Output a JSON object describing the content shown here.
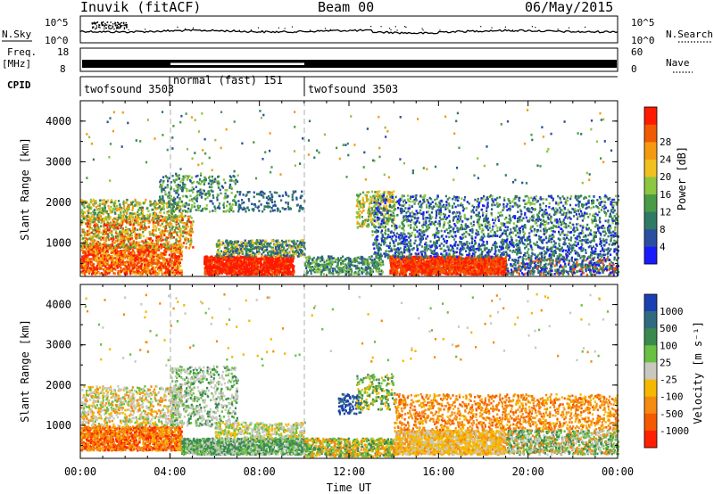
{
  "header": {
    "station": "Inuvik (fitACF)",
    "beam": "Beam 00",
    "date": "06/May/2015"
  },
  "noise_panel": {
    "left_label": "N.Sky",
    "right_label": "N.Search",
    "left_ticks": [
      "10^5",
      "10^0"
    ],
    "right_ticks": [
      "10^5",
      "10^0"
    ]
  },
  "freq_panel": {
    "left_label_1": "Freq.",
    "left_label_2": "[MHz]",
    "right_label": "Nave",
    "left_ticks": [
      "18",
      "8"
    ],
    "right_ticks": [
      "60",
      "0"
    ]
  },
  "cpid": {
    "label": "CPID",
    "segments": [
      {
        "name": "twofsound 3503",
        "start": 0,
        "end": 4
      },
      {
        "name": "normal (fast) 151",
        "start": 4,
        "end": 10
      },
      {
        "name": "twofsound 3503",
        "start": 10,
        "end": 24
      }
    ]
  },
  "chart_data": [
    {
      "type": "heatmap",
      "name": "power-panel",
      "ylabel": "Slant Range [km]",
      "yticks": [
        "1000",
        "2000",
        "3000",
        "4000"
      ],
      "ylim": [
        180,
        4500
      ],
      "colorbar": {
        "label": "Power [dB]",
        "ticks": [
          "4",
          "8",
          "12",
          "16",
          "20",
          "24",
          "28"
        ],
        "colors": [
          "#1a1aff",
          "#2a4fa0",
          "#2f7a64",
          "#4a9a48",
          "#8dc63f",
          "#f0c020",
          "#f59a10",
          "#f05a00",
          "#ff1a00"
        ]
      }
    },
    {
      "type": "heatmap",
      "name": "velocity-panel",
      "ylabel": "Slant Range [km]",
      "yticks": [
        "1000",
        "2000",
        "3000",
        "4000"
      ],
      "ylim": [
        180,
        4500
      ],
      "xlabel": "Time UT",
      "xticks": [
        "00:00",
        "04:00",
        "08:00",
        "12:00",
        "16:00",
        "20:00",
        "00:00"
      ],
      "xlim": [
        0,
        24
      ],
      "colorbar": {
        "label": "Velocity [m s⁻¹]",
        "ticks": [
          "1000",
          "500",
          "100",
          "25",
          "-25",
          "-100",
          "-500",
          "-1000"
        ],
        "colors": [
          "#1a3fb0",
          "#2f6a80",
          "#3a8a50",
          "#6ac040",
          "#c8c8c0",
          "#f5b800",
          "#f58a10",
          "#f55a00",
          "#ff2000"
        ]
      }
    }
  ]
}
